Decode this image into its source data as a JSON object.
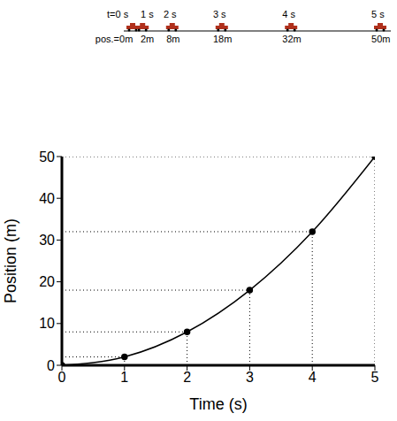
{
  "chart_data": {
    "type": "line",
    "x": [
      0,
      1,
      2,
      3,
      4,
      5
    ],
    "values": [
      0,
      2,
      8,
      18,
      32,
      50
    ],
    "xlabel": "Time (s)",
    "ylabel": "Position (m)",
    "xlim": [
      0,
      5
    ],
    "ylim": [
      0,
      50
    ],
    "xticks": [
      0,
      1,
      2,
      3,
      4,
      5
    ],
    "yticks": [
      0,
      10,
      20,
      30,
      40,
      50
    ],
    "color": "#000000",
    "marker": "circle"
  },
  "strip": {
    "time_labels": [
      "t=0 s",
      "1 s",
      "2 s",
      "3 s",
      "4 s",
      "5 s"
    ],
    "position_labels": [
      "pos.=0m",
      "2m",
      "8m",
      "18m",
      "32m",
      "50m"
    ]
  }
}
